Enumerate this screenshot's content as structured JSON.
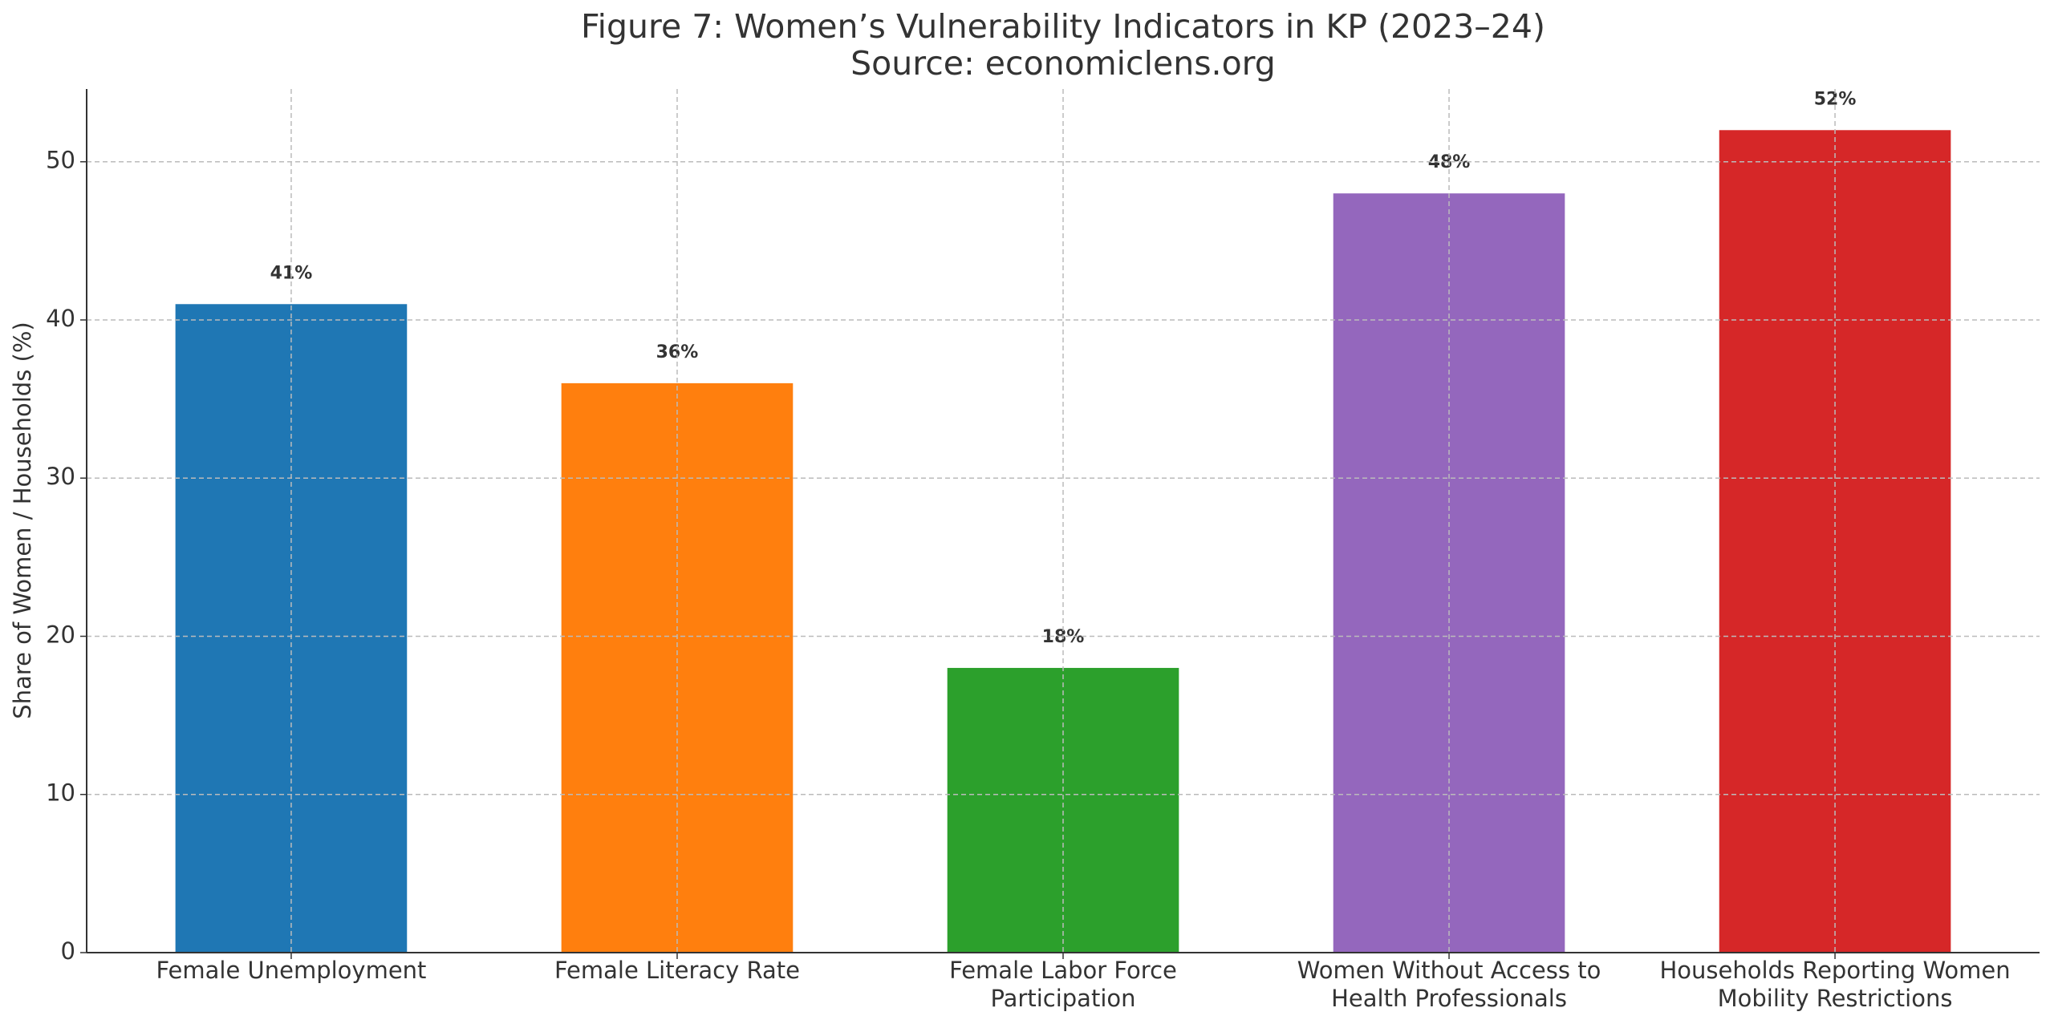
{
  "chart_data": {
    "type": "bar",
    "title": "Figure 7: Women’s Vulnerability Indicators in KP (2023–24)",
    "subtitle": "Source: economiclens.org",
    "y_label": "Share of Women / Households (%)",
    "categories": [
      "Female Unemployment",
      "Female Literacy Rate",
      "Female Labor Force\nParticipation",
      "Women Without Access to\nHealth Professionals",
      "Households Reporting Women\nMobility Restrictions"
    ],
    "values": [
      41,
      36,
      18,
      48,
      52
    ],
    "value_labels": [
      "41%",
      "36%",
      "18%",
      "48%",
      "52%"
    ],
    "colors": [
      "#1f77b4",
      "#ff7f0e",
      "#2ca02c",
      "#9467bd",
      "#d62728"
    ],
    "ylim": [
      0,
      54.6
    ],
    "yticks": [
      0,
      10,
      20,
      30,
      40,
      50
    ],
    "grid": true
  }
}
